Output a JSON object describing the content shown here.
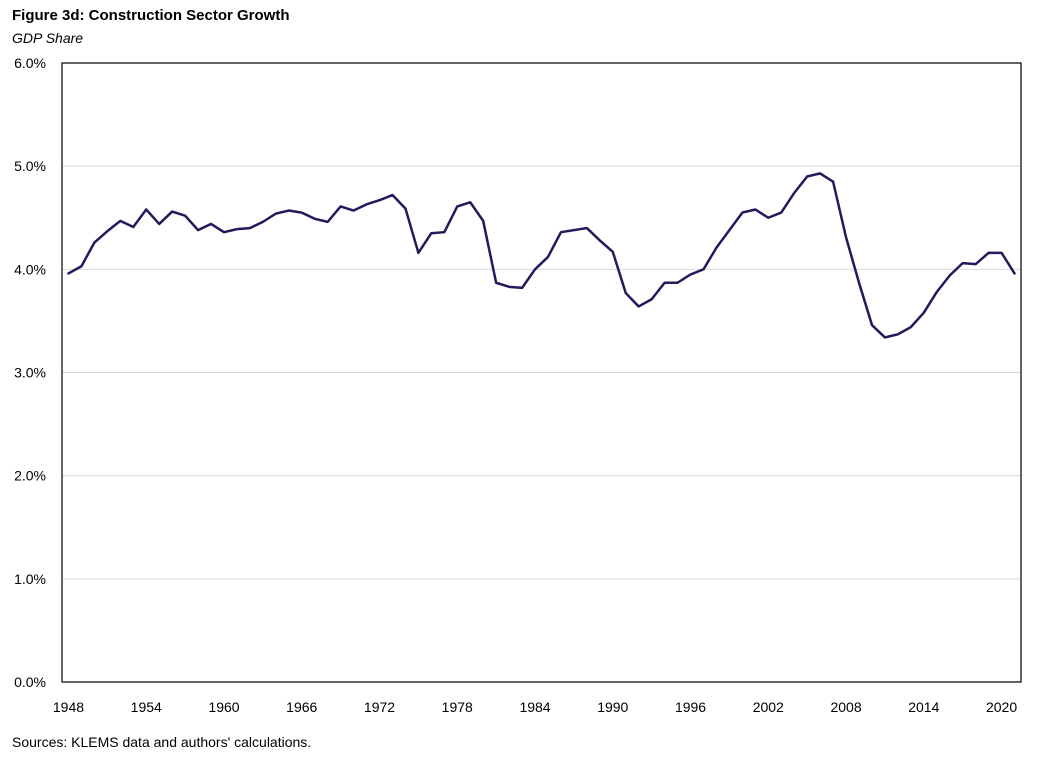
{
  "chart_data": {
    "type": "line",
    "title": "Figure 3d: Construction Sector Growth",
    "subtitle": "GDP Share",
    "source": "Sources: KLEMS data and authors' calculations.",
    "xlabel": "",
    "ylabel": "",
    "ylim": [
      0,
      6
    ],
    "xlim": [
      1948,
      2021
    ],
    "grid": true,
    "line_color": "#221a5a",
    "y_ticks": [
      0,
      1,
      2,
      3,
      4,
      5,
      6
    ],
    "y_tick_labels": [
      "0.0%",
      "1.0%",
      "2.0%",
      "3.0%",
      "4.0%",
      "5.0%",
      "6.0%"
    ],
    "x_ticks": [
      1948,
      1954,
      1960,
      1966,
      1972,
      1978,
      1984,
      1990,
      1996,
      2002,
      2008,
      2014,
      2020
    ],
    "x_tick_labels": [
      "1948",
      "1954",
      "1960",
      "1966",
      "1972",
      "1978",
      "1984",
      "1990",
      "1996",
      "2002",
      "2008",
      "2014",
      "2020"
    ],
    "series": [
      {
        "x": [
          1948,
          1949,
          1950,
          1951,
          1952,
          1953,
          1954,
          1955,
          1956,
          1957,
          1958,
          1959,
          1960,
          1961,
          1962,
          1963,
          1964,
          1965,
          1966,
          1967,
          1968,
          1969,
          1970,
          1971,
          1972,
          1973,
          1974,
          1975,
          1976,
          1977,
          1978,
          1979,
          1980,
          1981,
          1982,
          1983,
          1984,
          1985,
          1986,
          1987,
          1988,
          1989,
          1990,
          1991,
          1992,
          1993,
          1994,
          1995,
          1996,
          1997,
          1998,
          1999,
          2000,
          2001,
          2002,
          2003,
          2004,
          2005,
          2006,
          2007,
          2008,
          2009,
          2010,
          2011,
          2012,
          2013,
          2014,
          2015,
          2016,
          2017,
          2018,
          2019,
          2020,
          2021
        ],
        "values": [
          3.96,
          4.03,
          4.26,
          4.37,
          4.47,
          4.41,
          4.58,
          4.44,
          4.56,
          4.52,
          4.38,
          4.44,
          4.36,
          4.39,
          4.4,
          4.46,
          4.54,
          4.57,
          4.55,
          4.49,
          4.46,
          4.61,
          4.57,
          4.63,
          4.67,
          4.72,
          4.59,
          4.16,
          4.35,
          4.36,
          4.61,
          4.65,
          4.47,
          3.87,
          3.83,
          3.82,
          4.0,
          4.12,
          4.36,
          4.38,
          4.4,
          4.28,
          4.17,
          3.77,
          3.64,
          3.71,
          3.87,
          3.87,
          3.95,
          4.0,
          4.21,
          4.38,
          4.55,
          4.58,
          4.5,
          4.55,
          4.74,
          4.9,
          4.93,
          4.85,
          4.31,
          3.87,
          3.46,
          3.34,
          3.37,
          3.44,
          3.58,
          3.78,
          3.94,
          4.06,
          4.05,
          4.16,
          4.16,
          3.96
        ]
      }
    ]
  }
}
